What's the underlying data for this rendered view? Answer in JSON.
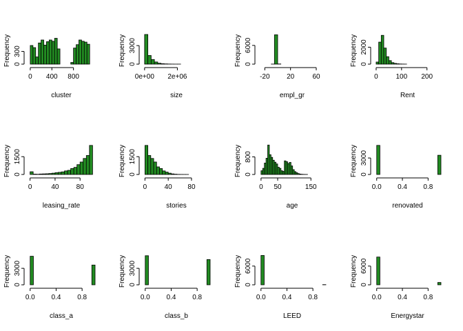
{
  "style": {
    "bar_fill": "#228b22",
    "bar_stroke": "#000000",
    "background": "#ffffff"
  },
  "chart_data": [
    {
      "type": "bar",
      "xlabel": "cluster",
      "ylabel": "Frequency",
      "xlim": [
        -50,
        1200
      ],
      "ylim": [
        0,
        700
      ],
      "xticks": [
        {
          "v": 0,
          "label": "0"
        },
        {
          "v": 400,
          "label": "400"
        },
        {
          "v": 800,
          "label": "800"
        }
      ],
      "yticks": [
        {
          "v": 0,
          "label": "0"
        },
        {
          "v": 300,
          "label": "300"
        }
      ],
      "bin_start": 0,
      "bin_width": 50,
      "values": [
        440,
        390,
        170,
        500,
        570,
        450,
        530,
        570,
        540,
        610,
        360,
        0,
        0,
        0,
        0,
        40,
        380,
        460,
        570,
        540,
        520,
        470
      ]
    },
    {
      "type": "bar",
      "xlabel": "size",
      "ylabel": "Frequency",
      "xlim": [
        -120000,
        4000000
      ],
      "ylim": [
        0,
        4800
      ],
      "xticks": [
        {
          "v": 0,
          "label": "0e+00"
        },
        {
          "v": 2000000,
          "label": "2e+06"
        }
      ],
      "yticks": [
        {
          "v": 0,
          "label": "0"
        },
        {
          "v": 3000,
          "label": "3000"
        }
      ],
      "bin_start": 0,
      "bin_width": 200000,
      "values": [
        4800,
        1400,
        750,
        350,
        150,
        70,
        40,
        20,
        10,
        5,
        5,
        0,
        0,
        0,
        0,
        0,
        0,
        0,
        0,
        0
      ]
    },
    {
      "type": "bar",
      "xlabel": "empl_gr",
      "ylabel": "Frequency",
      "xlim": [
        -30,
        75
      ],
      "ylim": [
        0,
        9500
      ],
      "xticks": [
        {
          "v": -20,
          "label": "-20"
        },
        {
          "v": 20,
          "label": "20"
        },
        {
          "v": 60,
          "label": "60"
        }
      ],
      "yticks": [
        {
          "v": 0,
          "label": "0"
        },
        {
          "v": 6000,
          "label": "6000"
        }
      ],
      "bin_start": -25,
      "bin_width": 5,
      "values": [
        0,
        0,
        0,
        20,
        9400,
        60,
        0,
        0,
        0,
        0,
        0,
        0,
        0,
        0,
        0,
        0,
        0,
        0,
        0
      ]
    },
    {
      "type": "bar",
      "xlabel": "Rent",
      "ylabel": "Frequency",
      "xlim": [
        -8,
        255
      ],
      "ylim": [
        0,
        3500
      ],
      "xticks": [
        {
          "v": 0,
          "label": "0"
        },
        {
          "v": 100,
          "label": "100"
        },
        {
          "v": 200,
          "label": "200"
        }
      ],
      "yticks": [
        {
          "v": 0,
          "label": "0"
        },
        {
          "v": 2000,
          "label": "2000"
        }
      ],
      "bin_start": 0,
      "bin_width": 10,
      "values": [
        250,
        2600,
        3400,
        1900,
        880,
        420,
        180,
        90,
        45,
        20,
        10,
        5,
        0,
        0,
        0,
        0,
        0,
        0,
        0,
        0,
        0,
        0,
        0,
        0,
        0
      ]
    },
    {
      "type": "bar",
      "xlabel": "leasing_rate",
      "ylabel": "Frequency",
      "xlim": [
        -4,
        104
      ],
      "ylim": [
        0,
        2500
      ],
      "xticks": [
        {
          "v": 0,
          "label": "0"
        },
        {
          "v": 40,
          "label": "40"
        },
        {
          "v": 80,
          "label": "80"
        }
      ],
      "yticks": [
        {
          "v": 0,
          "label": "0"
        },
        {
          "v": 1500,
          "label": "1500"
        }
      ],
      "bin_start": 0,
      "bin_width": 5,
      "values": [
        230,
        30,
        20,
        40,
        50,
        60,
        80,
        110,
        150,
        180,
        220,
        300,
        350,
        500,
        600,
        830,
        1050,
        1350,
        1600,
        2450
      ]
    },
    {
      "type": "bar",
      "xlabel": "stories",
      "ylabel": "Frequency",
      "xlim": [
        -4,
        112
      ],
      "ylim": [
        0,
        2500
      ],
      "xticks": [
        {
          "v": 0,
          "label": "0"
        },
        {
          "v": 40,
          "label": "40"
        },
        {
          "v": 80,
          "label": "80"
        }
      ],
      "yticks": [
        {
          "v": 0,
          "label": "0"
        },
        {
          "v": 1500,
          "label": "1500"
        }
      ],
      "bin_start": 0,
      "bin_width": 5,
      "values": [
        2450,
        1600,
        1350,
        1050,
        640,
        500,
        300,
        200,
        110,
        50,
        25,
        10,
        5,
        3,
        2,
        0,
        0,
        0,
        0,
        0,
        0,
        0
      ]
    },
    {
      "type": "bar",
      "xlabel": "age",
      "ylabel": "Frequency",
      "xlim": [
        -8,
        195
      ],
      "ylim": [
        0,
        1350
      ],
      "xticks": [
        {
          "v": 0,
          "label": "0"
        },
        {
          "v": 50,
          "label": "50"
        },
        {
          "v": 150,
          "label": "150"
        }
      ],
      "yticks": [
        {
          "v": 0,
          "label": "0"
        },
        {
          "v": 800,
          "label": "800"
        }
      ],
      "bin_start": 0,
      "bin_width": 5,
      "values": [
        170,
        280,
        520,
        740,
        1340,
        900,
        780,
        650,
        560,
        480,
        330,
        280,
        170,
        140,
        620,
        580,
        500,
        550,
        390,
        220,
        130,
        80,
        40,
        20,
        10,
        5,
        3,
        2,
        0,
        0,
        0,
        0,
        0,
        0,
        0,
        0,
        0,
        0
      ]
    },
    {
      "type": "bar",
      "xlabel": "renovated",
      "ylabel": "Frequency",
      "xlim": [
        -0.04,
        1.0
      ],
      "ylim": [
        0,
        5400
      ],
      "xticks": [
        {
          "v": 0.0,
          "label": "0.0"
        },
        {
          "v": 0.4,
          "label": "0.4"
        },
        {
          "v": 0.8,
          "label": "0.8"
        }
      ],
      "yticks": [
        {
          "v": 0,
          "label": "0"
        },
        {
          "v": 3000,
          "label": "3000"
        }
      ],
      "bin_start": 0,
      "bin_width": 0.05,
      "values": [
        5300,
        0,
        0,
        0,
        0,
        0,
        0,
        0,
        0,
        0,
        0,
        0,
        0,
        0,
        0,
        0,
        0,
        0,
        0,
        3500
      ]
    },
    {
      "type": "bar",
      "xlabel": "class_a",
      "ylabel": "Frequency",
      "xlim": [
        -0.04,
        1.0
      ],
      "ylim": [
        0,
        5400
      ],
      "xticks": [
        {
          "v": 0.0,
          "label": "0.0"
        },
        {
          "v": 0.4,
          "label": "0.4"
        },
        {
          "v": 0.8,
          "label": "0.8"
        }
      ],
      "yticks": [
        {
          "v": 0,
          "label": "0"
        },
        {
          "v": 3000,
          "label": "3000"
        }
      ],
      "bin_start": 0,
      "bin_width": 0.05,
      "values": [
        5200,
        0,
        0,
        0,
        0,
        0,
        0,
        0,
        0,
        0,
        0,
        0,
        0,
        0,
        0,
        0,
        0,
        0,
        0,
        3600
      ]
    },
    {
      "type": "bar",
      "xlabel": "class_b",
      "ylabel": "Frequency",
      "xlim": [
        -0.04,
        1.0
      ],
      "ylim": [
        0,
        5400
      ],
      "xticks": [
        {
          "v": 0.0,
          "label": "0.0"
        },
        {
          "v": 0.4,
          "label": "0.4"
        },
        {
          "v": 0.8,
          "label": "0.8"
        }
      ],
      "yticks": [
        {
          "v": 0,
          "label": "0"
        },
        {
          "v": 3000,
          "label": "3000"
        }
      ],
      "bin_start": 0,
      "bin_width": 0.05,
      "values": [
        5300,
        0,
        0,
        0,
        0,
        0,
        0,
        0,
        0,
        0,
        0,
        0,
        0,
        0,
        0,
        0,
        0,
        0,
        0,
        4600
      ]
    },
    {
      "type": "bar",
      "xlabel": "LEED",
      "ylabel": "Frequency",
      "xlim": [
        -0.04,
        1.0
      ],
      "ylim": [
        0,
        9500
      ],
      "xticks": [
        {
          "v": 0.0,
          "label": "0.0"
        },
        {
          "v": 0.4,
          "label": "0.4"
        },
        {
          "v": 0.8,
          "label": "0.8"
        }
      ],
      "yticks": [
        {
          "v": 0,
          "label": "0"
        },
        {
          "v": 6000,
          "label": "6000"
        }
      ],
      "bin_start": 0,
      "bin_width": 0.05,
      "values": [
        9400,
        0,
        0,
        0,
        0,
        0,
        0,
        0,
        0,
        0,
        0,
        0,
        0,
        0,
        0,
        0,
        0,
        0,
        0,
        60
      ]
    },
    {
      "type": "bar",
      "xlabel": "Energystar",
      "ylabel": "Frequency",
      "xlim": [
        -0.04,
        1.0
      ],
      "ylim": [
        0,
        9500
      ],
      "xticks": [
        {
          "v": 0.0,
          "label": "0.0"
        },
        {
          "v": 0.4,
          "label": "0.4"
        },
        {
          "v": 0.8,
          "label": "0.8"
        }
      ],
      "yticks": [
        {
          "v": 0,
          "label": "0"
        },
        {
          "v": 6000,
          "label": "6000"
        }
      ],
      "bin_start": 0,
      "bin_width": 0.05,
      "values": [
        8900,
        0,
        0,
        0,
        0,
        0,
        0,
        0,
        0,
        0,
        0,
        0,
        0,
        0,
        0,
        0,
        0,
        0,
        0,
        750
      ]
    }
  ]
}
